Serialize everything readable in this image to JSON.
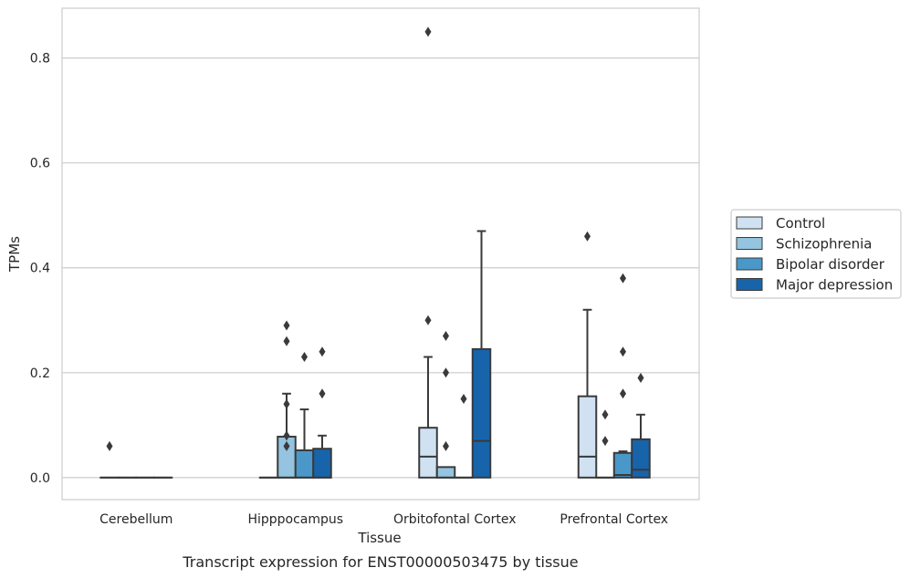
{
  "chart_data": {
    "type": "box",
    "xlabel": "Tissue",
    "ylabel": "TPMs",
    "caption": "Transcript expression for ENST00000503475 by tissue",
    "ylim": [
      -0.042,
      0.895
    ],
    "yticks": [
      0.0,
      0.2,
      0.4,
      0.6,
      0.8
    ],
    "ytick_labels": [
      "0.0",
      "0.2",
      "0.4",
      "0.6",
      "0.8"
    ],
    "grid": "horizontal",
    "legend_position": "right",
    "categories": [
      "Cerebellum",
      "Hipppocampus",
      "Orbitofontal Cortex",
      "Prefrontal Cortex"
    ],
    "series": [
      {
        "name": "Control",
        "color": "#d0e1f2",
        "boxes": [
          {
            "q1": 0,
            "median": 0,
            "q3": 0,
            "whislo": 0,
            "whishi": 0,
            "fliers": [
              0.06
            ]
          },
          {
            "q1": 0,
            "median": 0,
            "q3": 0,
            "whislo": 0,
            "whishi": 0,
            "fliers": []
          },
          {
            "q1": 0,
            "median": 0.04,
            "q3": 0.095,
            "whislo": 0,
            "whishi": 0.23,
            "fliers": [
              0.3,
              0.85
            ]
          },
          {
            "q1": 0,
            "median": 0.04,
            "q3": 0.155,
            "whislo": 0,
            "whishi": 0.32,
            "fliers": [
              0.46
            ]
          }
        ]
      },
      {
        "name": "Schizophrenia",
        "color": "#94c4df",
        "boxes": [
          {
            "q1": 0,
            "median": 0,
            "q3": 0,
            "whislo": 0,
            "whishi": 0,
            "fliers": []
          },
          {
            "q1": 0,
            "median": 0,
            "q3": 0.078,
            "whislo": 0,
            "whishi": 0.16,
            "fliers": [
              0.06,
              0.08,
              0.14,
              0.26,
              0.29
            ]
          },
          {
            "q1": 0,
            "median": 0,
            "q3": 0.02,
            "whislo": 0,
            "whishi": 0.02,
            "fliers": [
              0.06,
              0.2,
              0.27
            ]
          },
          {
            "q1": 0,
            "median": 0,
            "q3": 0,
            "whislo": 0,
            "whishi": 0,
            "fliers": [
              0.07,
              0.12
            ]
          }
        ]
      },
      {
        "name": "Bipolar disorder",
        "color": "#4a98c9",
        "boxes": [
          {
            "q1": 0,
            "median": 0,
            "q3": 0,
            "whislo": 0,
            "whishi": 0,
            "fliers": []
          },
          {
            "q1": 0,
            "median": 0,
            "q3": 0.052,
            "whislo": 0,
            "whishi": 0.13,
            "fliers": [
              0.23
            ]
          },
          {
            "q1": 0,
            "median": 0,
            "q3": 0,
            "whislo": 0,
            "whishi": 0,
            "fliers": [
              0.15
            ]
          },
          {
            "q1": 0,
            "median": 0.005,
            "q3": 0.047,
            "whislo": 0,
            "whishi": 0.05,
            "fliers": [
              0.16,
              0.24,
              0.38
            ]
          }
        ]
      },
      {
        "name": "Major depression",
        "color": "#1764ab",
        "boxes": [
          {
            "q1": 0,
            "median": 0,
            "q3": 0,
            "whislo": 0,
            "whishi": 0,
            "fliers": []
          },
          {
            "q1": 0,
            "median": 0,
            "q3": 0.055,
            "whislo": 0,
            "whishi": 0.08,
            "fliers": [
              0.16,
              0.24
            ]
          },
          {
            "q1": 0,
            "median": 0.07,
            "q3": 0.245,
            "whislo": 0,
            "whishi": 0.47,
            "fliers": []
          },
          {
            "q1": 0,
            "median": 0.015,
            "q3": 0.073,
            "whislo": 0,
            "whishi": 0.12,
            "fliers": [
              0.19
            ]
          }
        ]
      }
    ]
  }
}
